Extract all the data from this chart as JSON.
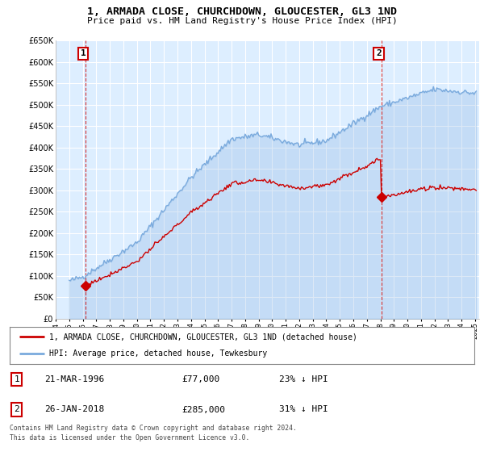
{
  "title": "1, ARMADA CLOSE, CHURCHDOWN, GLOUCESTER, GL3 1ND",
  "subtitle": "Price paid vs. HM Land Registry's House Price Index (HPI)",
  "legend_line1": "1, ARMADA CLOSE, CHURCHDOWN, GLOUCESTER, GL3 1ND (detached house)",
  "legend_line2": "HPI: Average price, detached house, Tewkesbury",
  "annotation1_date": "21-MAR-1996",
  "annotation1_price": "£77,000",
  "annotation1_hpi": "23% ↓ HPI",
  "annotation2_date": "26-JAN-2018",
  "annotation2_price": "£285,000",
  "annotation2_hpi": "31% ↓ HPI",
  "footer1": "Contains HM Land Registry data © Crown copyright and database right 2024.",
  "footer2": "This data is licensed under the Open Government Licence v3.0.",
  "ylim": [
    0,
    650000
  ],
  "yticks": [
    0,
    50000,
    100000,
    150000,
    200000,
    250000,
    300000,
    350000,
    400000,
    450000,
    500000,
    550000,
    600000,
    650000
  ],
  "xlim_start": 1994.5,
  "xlim_end": 2025.3,
  "sale1_x": 1996.22,
  "sale1_y": 77000,
  "sale2_x": 2018.07,
  "sale2_y": 285000,
  "bg_color": "#ddeeff",
  "grid_color": "#ffffff",
  "line_red": "#cc0000",
  "line_blue": "#7aaadd",
  "fill_blue_alpha": 0.25,
  "annotation_box_color": "#cc0000"
}
